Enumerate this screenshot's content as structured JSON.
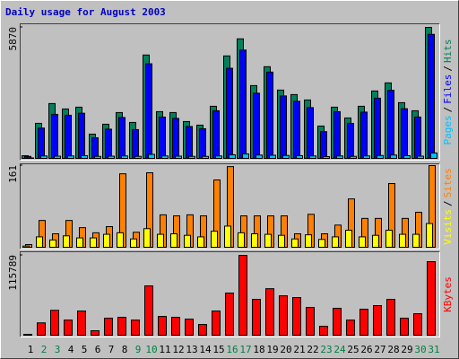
{
  "title": "Daily usage for August 2003",
  "legend_separator": "/",
  "chart_data": [
    {
      "type": "bar",
      "ylim": [
        0,
        5870
      ],
      "yticks": [
        5870
      ],
      "series": [
        {
          "name": "Hits",
          "color": "#00805c",
          "values": [
            160,
            1600,
            2480,
            2240,
            2320,
            1120,
            1560,
            2080,
            1640,
            4640,
            2120,
            2080,
            1680,
            1520,
            2360,
            4600,
            5360,
            3280,
            4120,
            3080,
            2880,
            2640,
            1480,
            2320,
            1840,
            2360,
            3040,
            3400,
            2520,
            2160,
            5870
          ]
        },
        {
          "name": "Files",
          "color": "#0000ff",
          "values": [
            130,
            1390,
            2000,
            1960,
            2050,
            960,
            1340,
            1860,
            1320,
            4250,
            1880,
            1820,
            1460,
            1360,
            2160,
            4050,
            4860,
            2940,
            3880,
            2820,
            2580,
            2300,
            1230,
            2120,
            1600,
            2100,
            2720,
            3070,
            2250,
            1880,
            5560
          ]
        },
        {
          "name": "Pages",
          "color": "#00c0ff",
          "values": [
            60,
            150,
            140,
            150,
            160,
            130,
            140,
            150,
            130,
            220,
            150,
            140,
            130,
            130,
            150,
            200,
            240,
            190,
            180,
            170,
            160,
            150,
            120,
            150,
            130,
            150,
            170,
            190,
            160,
            140,
            280
          ]
        }
      ]
    },
    {
      "type": "bar",
      "ylim": [
        0,
        161
      ],
      "yticks": [
        161
      ],
      "series": [
        {
          "name": "Sites",
          "color": "#ff8000",
          "values": [
            7,
            54,
            28,
            54,
            40,
            30,
            42,
            145,
            31,
            147,
            65,
            63,
            65,
            63,
            133,
            159,
            63,
            63,
            63,
            63,
            28,
            66,
            28,
            45,
            96,
            58,
            58,
            126,
            58,
            70,
            161
          ]
        },
        {
          "name": "Visits",
          "color": "#ffff00",
          "values": [
            4,
            22,
            16,
            24,
            20,
            20,
            27,
            30,
            18,
            38,
            27,
            28,
            25,
            22,
            33,
            43,
            30,
            28,
            27,
            25,
            18,
            26,
            17,
            22,
            35,
            22,
            25,
            35,
            27,
            27,
            48
          ]
        }
      ]
    },
    {
      "type": "bar",
      "ylim": [
        0,
        115789
      ],
      "yticks": [
        115789
      ],
      "categories": [
        "1",
        "2",
        "3",
        "4",
        "5",
        "6",
        "7",
        "8",
        "9",
        "10",
        "11",
        "12",
        "13",
        "14",
        "15",
        "16",
        "17",
        "18",
        "19",
        "20",
        "21",
        "22",
        "23",
        "24",
        "25",
        "26",
        "27",
        "28",
        "29",
        "30",
        "31"
      ],
      "category_colors": [
        "#000000",
        "#008040",
        "#008040",
        "#000000",
        "#000000",
        "#000000",
        "#000000",
        "#000000",
        "#008040",
        "#008040",
        "#000000",
        "#000000",
        "#000000",
        "#000000",
        "#000000",
        "#008040",
        "#008040",
        "#000000",
        "#000000",
        "#000000",
        "#000000",
        "#000000",
        "#008040",
        "#008040",
        "#000000",
        "#000000",
        "#000000",
        "#000000",
        "#000000",
        "#008040",
        "#008040"
      ],
      "series": [
        {
          "name": "KBytes",
          "color": "#ff0000",
          "values": [
            2500,
            19000,
            37000,
            23000,
            36000,
            7700,
            25700,
            27000,
            23000,
            72000,
            28300,
            27000,
            24400,
            16700,
            36000,
            61700,
            115789,
            52700,
            68000,
            57800,
            55300,
            41100,
            14100,
            39900,
            23000,
            38600,
            43700,
            52700,
            25700,
            32100,
            106700
          ]
        }
      ]
    }
  ]
}
